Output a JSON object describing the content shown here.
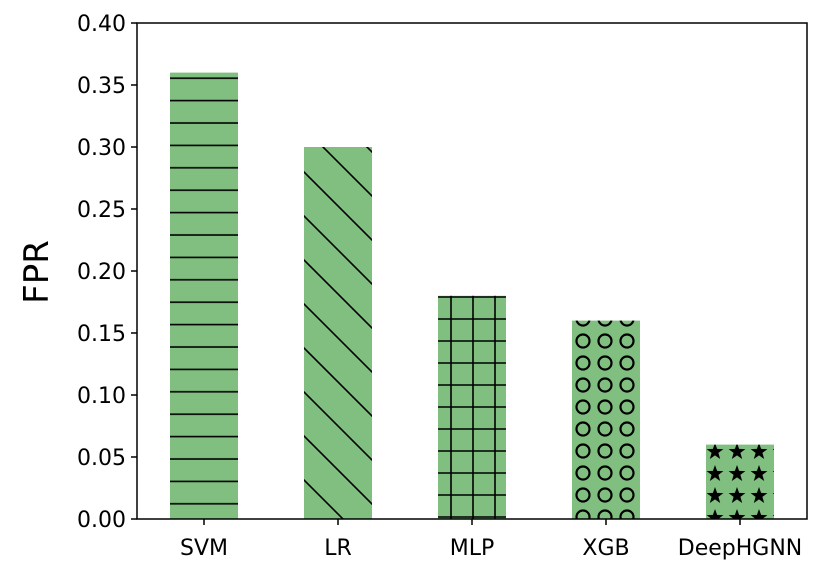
{
  "chart_data": {
    "type": "bar",
    "title": "",
    "xlabel": "",
    "ylabel": "FPR",
    "ylim": [
      0,
      0.4
    ],
    "yticks": [
      "0.00",
      "0.05",
      "0.10",
      "0.15",
      "0.20",
      "0.25",
      "0.30",
      "0.35",
      "0.40"
    ],
    "grid": false,
    "categories": [
      "SVM",
      "LR",
      "MLP",
      "XGB",
      "DeepHGNN"
    ],
    "values": [
      0.36,
      0.3,
      0.18,
      0.16,
      0.06
    ],
    "bar_color": "#80bf80",
    "hatch_color": "#000000",
    "hatches": [
      "horizontal-lines",
      "diagonal-lines",
      "grid",
      "circles",
      "stars"
    ]
  }
}
